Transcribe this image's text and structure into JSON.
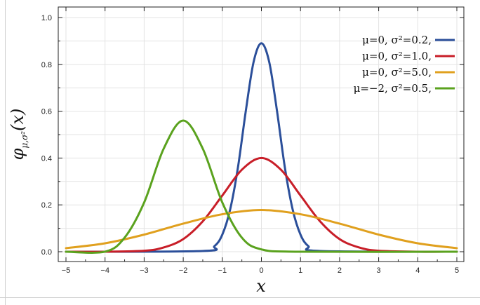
{
  "chart_data": {
    "type": "line",
    "title": "",
    "xlabel": "x",
    "ylabel": "φμ,σ²(x)",
    "ylabel_main": "φ",
    "ylabel_sub": "μ,σ²",
    "ylabel_arg": "(x)",
    "xlim": [
      -5,
      5
    ],
    "ylim": [
      0,
      1.0
    ],
    "x_ticks": [
      -5,
      -4,
      -3,
      -2,
      -1,
      0,
      1,
      2,
      3,
      4,
      5
    ],
    "x_tick_labels": [
      "−5",
      "−4",
      "−3",
      "−2",
      "−1",
      "0",
      "1",
      "2",
      "3",
      "4",
      "5"
    ],
    "y_ticks": [
      0,
      0.2,
      0.4,
      0.6,
      0.8,
      1.0
    ],
    "y_tick_labels": [
      "0.0",
      "0.2",
      "0.4",
      "0.6",
      "0.8",
      "1.0"
    ],
    "grid": true,
    "legend_position": "top-right",
    "series": [
      {
        "name": "μ=0,   σ²=0.2,",
        "color": "#2b4f9a",
        "x": [
          -5,
          -1.5,
          -1.2,
          -1,
          -0.8,
          -0.6,
          -0.4,
          -0.2,
          0,
          0.2,
          0.4,
          0.6,
          0.8,
          1,
          1.2,
          1.5,
          5
        ],
        "y": [
          0,
          0.003,
          0.024,
          0.073,
          0.18,
          0.36,
          0.6,
          0.81,
          0.89,
          0.81,
          0.6,
          0.36,
          0.18,
          0.073,
          0.024,
          0.003,
          0
        ]
      },
      {
        "name": "μ=0,   σ²=1.0,",
        "color": "#c81e28",
        "x": [
          -5,
          -4,
          -3,
          -2.5,
          -2,
          -1.5,
          -1,
          -0.5,
          0,
          0.5,
          1,
          1.5,
          2,
          2.5,
          3,
          4,
          5
        ],
        "y": [
          0,
          0.0001,
          0.004,
          0.018,
          0.054,
          0.13,
          0.24,
          0.35,
          0.4,
          0.35,
          0.24,
          0.13,
          0.054,
          0.018,
          0.004,
          0.0001,
          0
        ]
      },
      {
        "name": "μ=0,   σ²=5.0,",
        "color": "#e0a01e",
        "x": [
          -5,
          -4,
          -3,
          -2,
          -1,
          0,
          1,
          2,
          3,
          4,
          5
        ],
        "y": [
          0.015,
          0.036,
          0.073,
          0.12,
          0.16,
          0.178,
          0.16,
          0.12,
          0.073,
          0.036,
          0.015
        ]
      },
      {
        "name": "μ=−2,  σ²=0.5,",
        "color": "#5aa21e",
        "x": [
          -5,
          -4,
          -3.5,
          -3,
          -2.5,
          -2,
          -1.5,
          -1,
          -0.5,
          0,
          1,
          5
        ],
        "y": [
          0,
          0.0001,
          0.06,
          0.21,
          0.44,
          0.56,
          0.44,
          0.21,
          0.06,
          0.01,
          0,
          0
        ]
      }
    ]
  }
}
